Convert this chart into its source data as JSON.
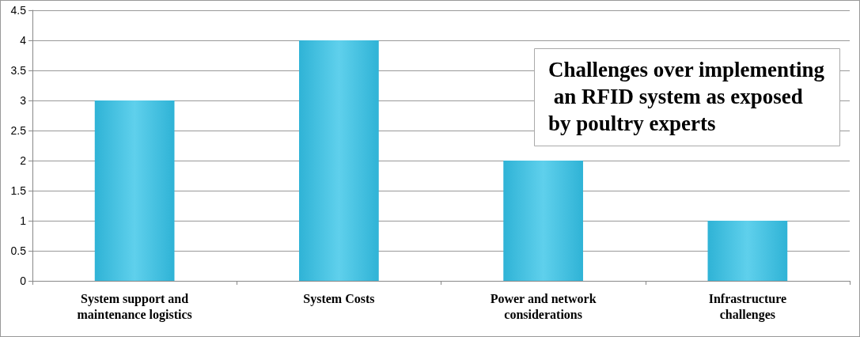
{
  "chart_data": {
    "type": "bar",
    "title": "Challenges over implementing an RFID system as exposed by poultry experts",
    "categories": [
      "System support and\nmaintenance logistics",
      "System Costs",
      "Power and network\nconsiderations",
      "Infrastructure\nchallenges"
    ],
    "values": [
      3,
      4,
      2,
      1
    ],
    "color": "#2fb3d6",
    "ylim": [
      0,
      4.5
    ],
    "yticks": [
      0,
      0.5,
      1,
      1.5,
      2,
      2.5,
      3,
      3.5,
      4,
      4.5
    ],
    "grid": "y"
  }
}
